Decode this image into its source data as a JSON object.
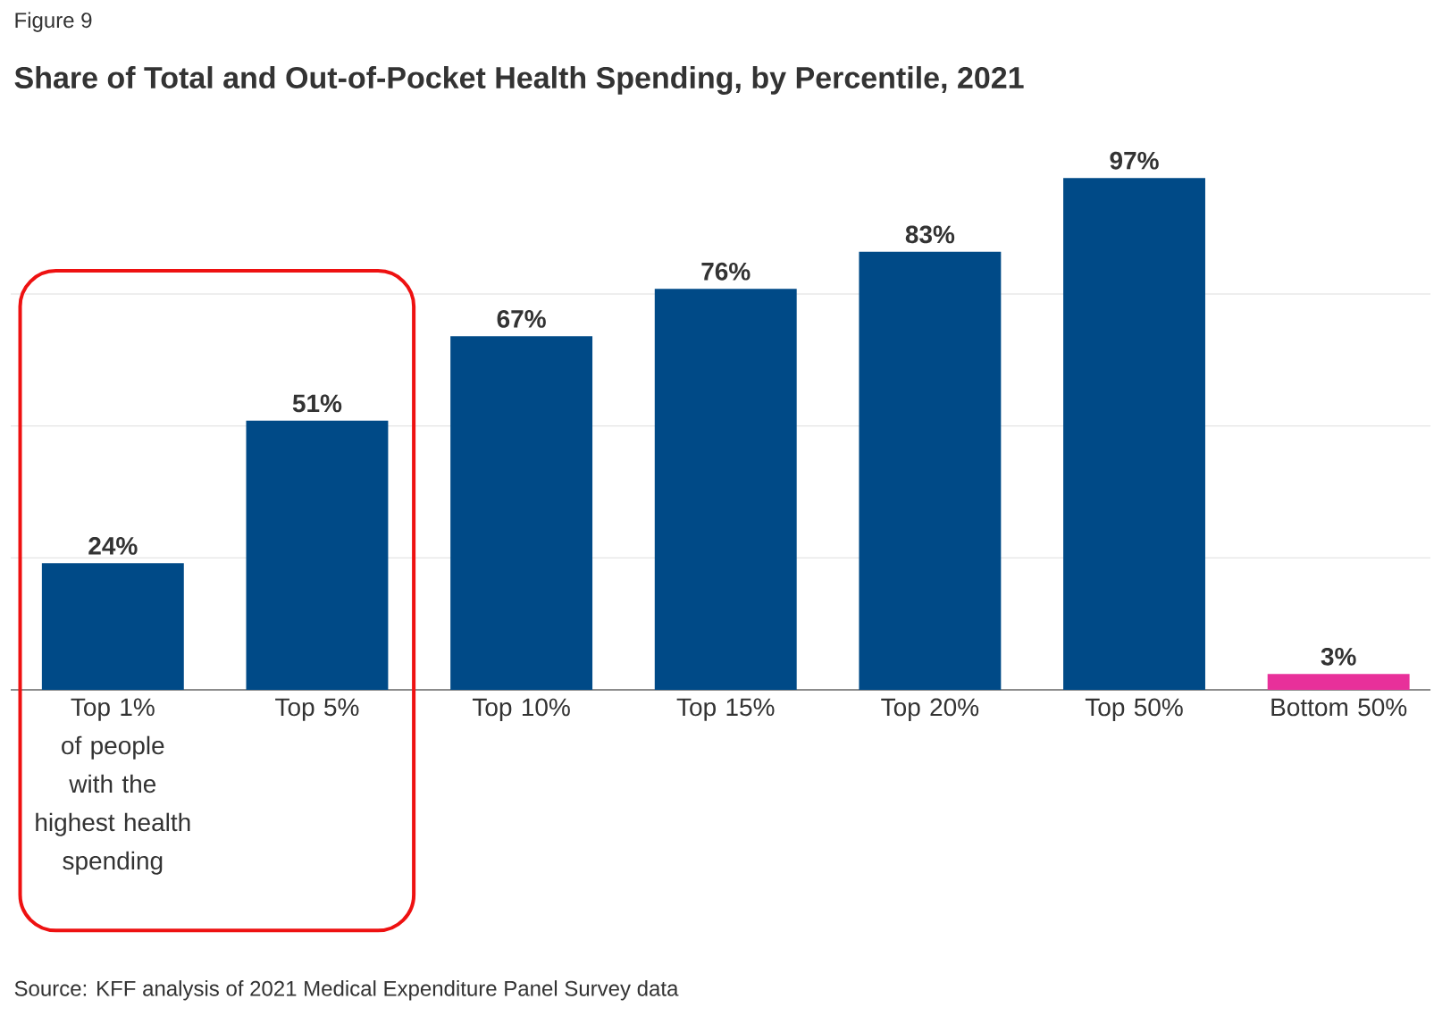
{
  "chart_data": {
    "type": "bar",
    "title": "Share of Total and Out-of-Pocket Health Spending, by Percentile, 2021",
    "annotations": [
      "Figure 9",
      "Source: KFF analysis of 2021 Medical Expenditure Panel Survey data"
    ],
    "categories": [
      "Top 1% of people with the highest health spending",
      "Top 5%",
      "Top 10%",
      "Top 15%",
      "Top 20%",
      "Top 50%",
      "Bottom 50%"
    ],
    "values": [
      24,
      51,
      67,
      76,
      83,
      97,
      3
    ],
    "colors": [
      "#004a87",
      "#004a87",
      "#004a87",
      "#004a87",
      "#004a87",
      "#004a87",
      "#e8309a"
    ],
    "value_labels": [
      "24%",
      "51%",
      "67%",
      "76%",
      "83%",
      "97%",
      "3%"
    ],
    "yticks": [
      {
        "value": 25,
        "label": null
      },
      {
        "value": 50,
        "label": null
      },
      {
        "value": 75,
        "label": null
      }
    ],
    "grid": "y",
    "tick_labels": "x"
  }
}
